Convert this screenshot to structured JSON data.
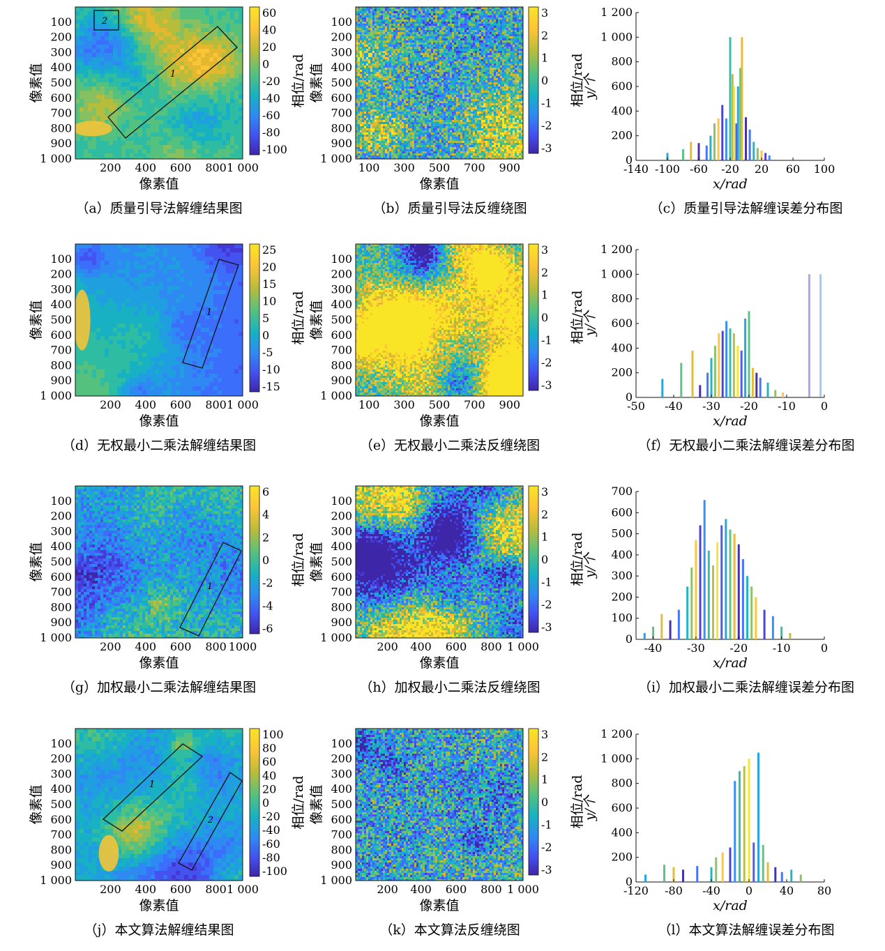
{
  "rows": [
    {
      "map": {
        "caption": "（a）质量引导法解缠结果图",
        "xlabel": "像素值",
        "ylabel": "像素值",
        "xticks": [
          "200",
          "400",
          "600",
          "800",
          "1 000"
        ],
        "yticks": [
          "100",
          "200",
          "300",
          "400",
          "500",
          "600",
          "700",
          "800",
          "900",
          "1 000"
        ],
        "cbar_label": "相位/rad",
        "cbar_ticks": [
          "60",
          "40",
          "20",
          "0",
          "-20",
          "-40",
          "-60",
          "-80",
          "-100"
        ],
        "box_labels": [
          "2",
          "1"
        ]
      },
      "wrap": {
        "caption": "（b）质量引导法反缠绕图",
        "xlabel": "像素值",
        "ylabel": "像素值",
        "xticks": [
          "100",
          "300",
          "500",
          "700",
          "900"
        ],
        "yticks": [
          "100",
          "200",
          "300",
          "400",
          "500",
          "600",
          "700",
          "800",
          "900",
          "1 000"
        ],
        "cbar_label": "相位/rad",
        "cbar_ticks": [
          "3",
          "2",
          "1",
          "0",
          "-1",
          "-2",
          "-3"
        ]
      },
      "hist": {
        "caption": "（c）质量引导法解缠误差分布图",
        "xlabel": "x/rad",
        "ylabel": "y/个",
        "xticks": [
          "-140",
          "-100",
          "-60",
          "-20",
          "20",
          "60",
          "100"
        ],
        "yticks": [
          "0",
          "200",
          "400",
          "600",
          "800",
          "1 000",
          "1 200"
        ]
      }
    },
    {
      "map": {
        "caption": "（d）无权最小二乘法解缠结果图",
        "xlabel": "像素值",
        "ylabel": "像素值",
        "xticks": [
          "200",
          "400",
          "600",
          "800",
          "1 000"
        ],
        "yticks": [
          "100",
          "200",
          "300",
          "400",
          "500",
          "600",
          "700",
          "800",
          "900",
          "1 000"
        ],
        "cbar_label": "相位/rad",
        "cbar_ticks": [
          "25",
          "20",
          "15",
          "10",
          "5",
          "0",
          "-5",
          "-10",
          "-15"
        ],
        "box_labels": [
          "1"
        ]
      },
      "wrap": {
        "caption": "（e）无权最小二乘法反缠绕图",
        "xlabel": "像素值",
        "ylabel": "像素值",
        "xticks": [
          "100",
          "300",
          "500",
          "700",
          "900"
        ],
        "yticks": [
          "100",
          "200",
          "300",
          "400",
          "500",
          "600",
          "700",
          "800",
          "900",
          "1 000"
        ],
        "cbar_label": "相位/rad",
        "cbar_ticks": [
          "3",
          "2",
          "1",
          "0",
          "-1",
          "-2",
          "-3"
        ]
      },
      "hist": {
        "caption": "（f）无权最小二乘法解缠误差分布图",
        "xlabel": "x/rad",
        "ylabel": "y/个",
        "xticks": [
          "-50",
          "-40",
          "-30",
          "-20",
          "-10",
          "0"
        ],
        "yticks": [
          "0",
          "200",
          "400",
          "600",
          "800",
          "1 000",
          "1 200"
        ]
      }
    },
    {
      "map": {
        "caption": "（g）加权最小二乘法解缠结果图",
        "xlabel": "像素值",
        "ylabel": "像素值",
        "xticks": [
          "200",
          "400",
          "600",
          "800",
          "1000"
        ],
        "yticks": [
          "100",
          "200",
          "300",
          "400",
          "500",
          "600",
          "700",
          "800",
          "900",
          "1 000"
        ],
        "cbar_label": "相位/rad",
        "cbar_ticks": [
          "6",
          "4",
          "2",
          "0",
          "-2",
          "-4",
          "-6"
        ],
        "box_labels": [
          "1"
        ]
      },
      "wrap": {
        "caption": "（h）加权最小二乘法反缠绕图",
        "xlabel": "像素值",
        "ylabel": "像素值",
        "xticks": [
          "200",
          "400",
          "600",
          "800",
          "1 000"
        ],
        "yticks": [
          "100",
          "200",
          "300",
          "400",
          "500",
          "600",
          "700",
          "800",
          "900",
          "1 000"
        ],
        "cbar_label": "相位/rad",
        "cbar_ticks": [
          "3",
          "2",
          "1",
          "0",
          "-1",
          "-2",
          "-3"
        ]
      },
      "hist": {
        "caption": "（i）加权最小二乘法解缠误差分布图",
        "xlabel": "x/rad",
        "ylabel": "y/个",
        "xticks": [
          "-40",
          "-30",
          "-20",
          "-10",
          "0"
        ],
        "yticks": [
          "0",
          "100",
          "200",
          "300",
          "400",
          "500",
          "600",
          "700"
        ]
      }
    },
    {
      "map": {
        "caption": "（j）本文算法解缠结果图",
        "xlabel": "像素值",
        "ylabel": "像素值",
        "xticks": [
          "200",
          "400",
          "600",
          "800",
          "1 000"
        ],
        "yticks": [
          "100",
          "200",
          "300",
          "400",
          "500",
          "600",
          "700",
          "800",
          "900",
          "1 000"
        ],
        "cbar_label": "相位/rad",
        "cbar_ticks": [
          "100",
          "80",
          "60",
          "40",
          "20",
          "0",
          "-20",
          "-40",
          "-60",
          "-80",
          "-100"
        ],
        "box_labels": [
          "1",
          "2"
        ]
      },
      "wrap": {
        "caption": "（k）本文算法反缠绕图",
        "xlabel": "像素值",
        "ylabel": "像素值",
        "xticks": [
          "200",
          "400",
          "600",
          "800",
          "1 000"
        ],
        "yticks": [
          "100",
          "200",
          "300",
          "400",
          "500",
          "600",
          "700",
          "800",
          "900",
          "1 000"
        ],
        "cbar_label": "相位/rad",
        "cbar_ticks": [
          "3",
          "2",
          "1",
          "0",
          "-1",
          "-2",
          "-3"
        ]
      },
      "hist": {
        "caption": "（l）本文算法解缠误差分布图",
        "xlabel": "x/rad",
        "ylabel": "y/个",
        "xticks": [
          "-120",
          "-80",
          "-40",
          "0",
          "40",
          "80"
        ],
        "yticks": [
          "0",
          "200",
          "400",
          "600",
          "800",
          "1 000",
          "1 200"
        ]
      }
    }
  ],
  "chart_data": [
    {
      "type": "bar",
      "panel": "c",
      "xlabel": "x/rad",
      "ylabel": "y/个",
      "xlim": [
        -140,
        100
      ],
      "ylim": [
        0,
        1200
      ],
      "x": [
        -100,
        -80,
        -70,
        -60,
        -50,
        -45,
        -40,
        -35,
        -30,
        -25,
        -20,
        -17,
        -15,
        -12,
        -10,
        -7,
        -5,
        0,
        5,
        10,
        15,
        20,
        25,
        30
      ],
      "values": [
        60,
        90,
        150,
        140,
        120,
        200,
        300,
        340,
        450,
        340,
        1000,
        700,
        600,
        300,
        600,
        750,
        1000,
        350,
        250,
        150,
        100,
        80,
        60,
        40
      ]
    },
    {
      "type": "bar",
      "panel": "f",
      "xlabel": "x/rad",
      "ylabel": "y/个",
      "xlim": [
        -50,
        0
      ],
      "ylim": [
        0,
        1200
      ],
      "x": [
        -43,
        -38,
        -35,
        -33,
        -31,
        -30,
        -29,
        -28,
        -27,
        -26,
        -25,
        -24,
        -23,
        -22,
        -21,
        -20,
        -19,
        -18,
        -17,
        -15,
        -13,
        -11,
        -4,
        -1
      ],
      "values": [
        150,
        280,
        380,
        100,
        200,
        320,
        420,
        520,
        540,
        620,
        560,
        520,
        420,
        380,
        640,
        700,
        240,
        200,
        160,
        120,
        60,
        40,
        1000,
        1000
      ]
    },
    {
      "type": "bar",
      "panel": "i",
      "xlabel": "x/rad",
      "ylabel": "y/个",
      "xlim": [
        -44,
        0
      ],
      "ylim": [
        0,
        700
      ],
      "x": [
        -42,
        -40,
        -38,
        -36,
        -34,
        -32,
        -31,
        -30,
        -29,
        -28,
        -27,
        -26,
        -25,
        -24,
        -23,
        -22,
        -21,
        -20,
        -19,
        -18,
        -17,
        -16,
        -14,
        -12,
        -10,
        -8
      ],
      "values": [
        30,
        60,
        120,
        90,
        140,
        250,
        340,
        470,
        540,
        660,
        420,
        350,
        460,
        540,
        570,
        520,
        500,
        450,
        380,
        300,
        250,
        200,
        140,
        110,
        60,
        30
      ]
    },
    {
      "type": "bar",
      "panel": "l",
      "xlabel": "x/rad",
      "ylabel": "y/个",
      "xlim": [
        -120,
        80
      ],
      "ylim": [
        0,
        1200
      ],
      "x": [
        -110,
        -90,
        -80,
        -70,
        -55,
        -40,
        -35,
        -28,
        -20,
        -15,
        -10,
        -5,
        0,
        5,
        10,
        15,
        20,
        28,
        35,
        45,
        55
      ],
      "values": [
        60,
        140,
        120,
        100,
        130,
        120,
        200,
        240,
        280,
        820,
        900,
        940,
        1000,
        320,
        1050,
        300,
        160,
        120,
        80,
        100,
        60
      ]
    }
  ],
  "colormap": [
    "#3e26a8",
    "#4538d7",
    "#4452f0",
    "#3c6efc",
    "#2f89f2",
    "#1f9fdf",
    "#17b1c3",
    "#2ebca3",
    "#55c17f",
    "#86c061",
    "#b8bc3b",
    "#e4b82e",
    "#fcc437",
    "#f9e526"
  ]
}
